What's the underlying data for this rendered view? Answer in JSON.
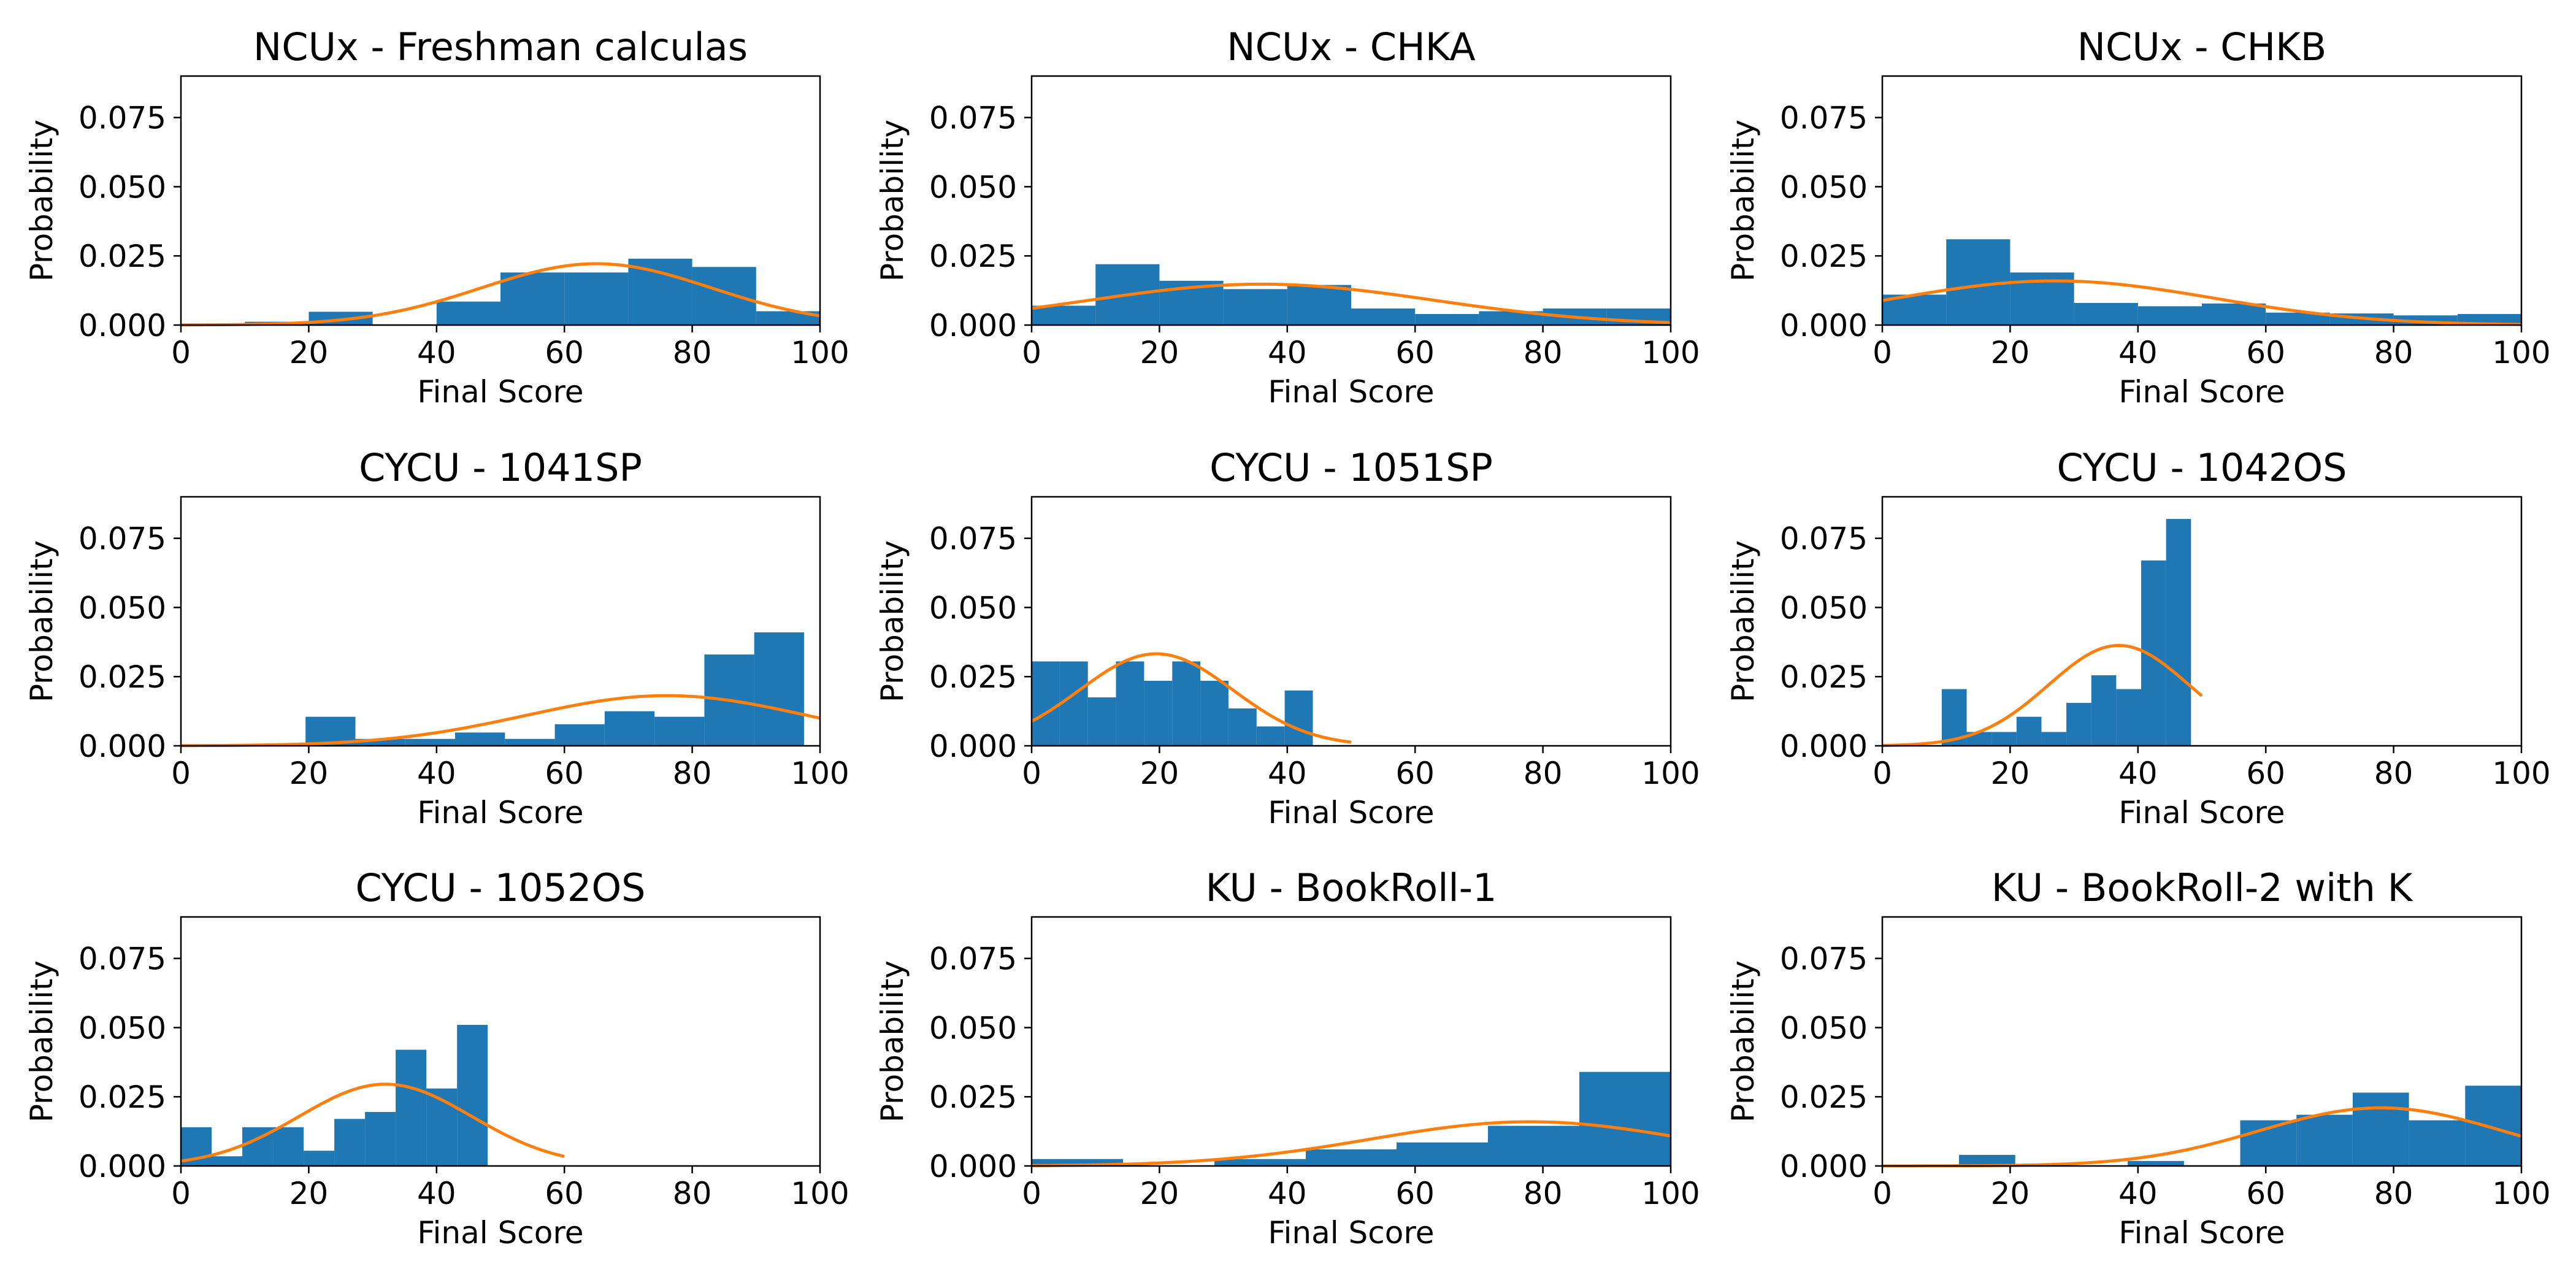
{
  "colors": {
    "histogram": "#1f77b4",
    "fit_curve": "#ff7f0e",
    "axes": "#000000",
    "background": "#ffffff"
  },
  "chart_data": [
    {
      "type": "bar",
      "title": "NCUx - Freshman calculas",
      "xlabel": "Final Score",
      "ylabel": "Probability",
      "xlim": [
        0,
        100
      ],
      "ylim": [
        0,
        0.09
      ],
      "xticks": [
        "0",
        "20",
        "40",
        "60",
        "80",
        "100"
      ],
      "yticks": [
        "0.000",
        "0.025",
        "0.050",
        "0.075"
      ],
      "grid": false,
      "legend": "none",
      "histogram": {
        "bin_edges": [
          0,
          10,
          20,
          30,
          40,
          50,
          60,
          70,
          80,
          90,
          100
        ],
        "values": [
          0.0,
          0.0012,
          0.0048,
          0.0,
          0.0085,
          0.019,
          0.019,
          0.024,
          0.021,
          0.005
        ]
      },
      "fit_curve": {
        "x_range": [
          0,
          100
        ],
        "mean": 65,
        "std": 18
      }
    },
    {
      "type": "bar",
      "title": "NCUx - CHKA",
      "xlabel": "Final Score",
      "ylabel": "Probability",
      "xlim": [
        0,
        100
      ],
      "ylim": [
        0,
        0.09
      ],
      "xticks": [
        "0",
        "20",
        "40",
        "60",
        "80",
        "100"
      ],
      "yticks": [
        "0.000",
        "0.025",
        "0.050",
        "0.075"
      ],
      "grid": false,
      "legend": "none",
      "histogram": {
        "bin_edges": [
          0,
          10,
          20,
          30,
          40,
          50,
          60,
          70,
          80,
          90,
          100
        ],
        "values": [
          0.007,
          0.022,
          0.016,
          0.013,
          0.0145,
          0.006,
          0.004,
          0.005,
          0.006,
          0.006
        ]
      },
      "fit_curve": {
        "x_range": [
          0,
          100
        ],
        "mean": 36,
        "std": 27
      }
    },
    {
      "type": "bar",
      "title": "NCUx - CHKB",
      "xlabel": "Final Score",
      "ylabel": "Probability",
      "xlim": [
        0,
        100
      ],
      "ylim": [
        0,
        0.09
      ],
      "xticks": [
        "0",
        "20",
        "40",
        "60",
        "80",
        "100"
      ],
      "yticks": [
        "0.000",
        "0.025",
        "0.050",
        "0.075"
      ],
      "grid": false,
      "legend": "none",
      "histogram": {
        "bin_edges": [
          0,
          10,
          20,
          30,
          40,
          50,
          60,
          70,
          80,
          90,
          100
        ],
        "values": [
          0.011,
          0.031,
          0.019,
          0.008,
          0.0068,
          0.0078,
          0.0045,
          0.0042,
          0.0035,
          0.004
        ]
      },
      "fit_curve": {
        "x_range": [
          0,
          100
        ],
        "mean": 27,
        "std": 25
      }
    },
    {
      "type": "bar",
      "title": "CYCU - 1041SP",
      "xlabel": "Final Score",
      "ylabel": "Probability",
      "xlim": [
        0,
        100
      ],
      "ylim": [
        0,
        0.09
      ],
      "xticks": [
        "0",
        "20",
        "40",
        "60",
        "80",
        "100"
      ],
      "yticks": [
        "0.000",
        "0.025",
        "0.050",
        "0.075"
      ],
      "grid": false,
      "legend": "none",
      "histogram": {
        "bin_edges": [
          19.5,
          27.3,
          35.1,
          42.9,
          50.7,
          58.5,
          66.3,
          74.1,
          81.9,
          89.7,
          97.5
        ],
        "values": [
          0.0105,
          0.0025,
          0.0025,
          0.0048,
          0.0025,
          0.0078,
          0.0125,
          0.0105,
          0.033,
          0.041
        ]
      },
      "fit_curve": {
        "x_range": [
          0,
          100
        ],
        "mean": 76,
        "std": 22
      }
    },
    {
      "type": "bar",
      "title": "CYCU - 1051SP",
      "xlabel": "Final Score",
      "ylabel": "Probability",
      "xlim": [
        0,
        100
      ],
      "ylim": [
        0,
        0.09
      ],
      "xticks": [
        "0",
        "20",
        "40",
        "60",
        "80",
        "100"
      ],
      "yticks": [
        "0.000",
        "0.025",
        "0.050",
        "0.075"
      ],
      "grid": false,
      "legend": "none",
      "histogram": {
        "bin_edges": [
          0,
          4.4,
          8.8,
          13.2,
          17.6,
          22,
          26.4,
          30.8,
          35.2,
          39.6,
          44
        ],
        "values": [
          0.0305,
          0.0305,
          0.0175,
          0.0305,
          0.0235,
          0.0305,
          0.0235,
          0.0135,
          0.007,
          0.02
        ]
      },
      "fit_curve": {
        "x_range": [
          0,
          50
        ],
        "mean": 19.5,
        "std": 12
      }
    },
    {
      "type": "bar",
      "title": "CYCU - 1042OS",
      "xlabel": "Final Score",
      "ylabel": "Probability",
      "xlim": [
        0,
        100
      ],
      "ylim": [
        0,
        0.09
      ],
      "xticks": [
        "0",
        "20",
        "40",
        "60",
        "80",
        "100"
      ],
      "yticks": [
        "0.000",
        "0.025",
        "0.050",
        "0.075"
      ],
      "grid": false,
      "legend": "none",
      "histogram": {
        "bin_edges": [
          9.3,
          13.2,
          17.1,
          21,
          24.9,
          28.8,
          32.7,
          36.6,
          40.5,
          44.4,
          48.3
        ],
        "values": [
          0.0205,
          0.005,
          0.005,
          0.0105,
          0.005,
          0.0155,
          0.0255,
          0.0205,
          0.067,
          0.082
        ]
      },
      "fit_curve": {
        "x_range": [
          0,
          50
        ],
        "mean": 37,
        "std": 11
      }
    },
    {
      "type": "bar",
      "title": "CYCU - 1052OS",
      "xlabel": "Final Score",
      "ylabel": "Probability",
      "xlim": [
        0,
        100
      ],
      "ylim": [
        0,
        0.09
      ],
      "xticks": [
        "0",
        "20",
        "40",
        "60",
        "80",
        "100"
      ],
      "yticks": [
        "0.000",
        "0.025",
        "0.050",
        "0.075"
      ],
      "grid": false,
      "legend": "none",
      "histogram": {
        "bin_edges": [
          0,
          4.8,
          9.6,
          14.4,
          19.2,
          24,
          28.8,
          33.6,
          38.4,
          43.2,
          48
        ],
        "values": [
          0.014,
          0.0035,
          0.014,
          0.014,
          0.0055,
          0.017,
          0.0195,
          0.042,
          0.028,
          0.051
        ]
      },
      "fit_curve": {
        "x_range": [
          0,
          60
        ],
        "mean": 32,
        "std": 13.5
      }
    },
    {
      "type": "bar",
      "title": "KU - BookRoll-1",
      "xlabel": "Final Score",
      "ylabel": "Probability",
      "xlim": [
        0,
        100
      ],
      "ylim": [
        0,
        0.09
      ],
      "xticks": [
        "0",
        "20",
        "40",
        "60",
        "80",
        "100"
      ],
      "yticks": [
        "0.000",
        "0.025",
        "0.050",
        "0.075"
      ],
      "grid": false,
      "legend": "none",
      "histogram": {
        "bin_edges": [
          0,
          14.3,
          28.6,
          42.9,
          57.1,
          71.4,
          85.7,
          100
        ],
        "values": [
          0.0025,
          0.0,
          0.0025,
          0.006,
          0.0085,
          0.0145,
          0.034
        ]
      },
      "fit_curve": {
        "x_range": [
          0,
          100
        ],
        "mean": 78,
        "std": 25
      }
    },
    {
      "type": "bar",
      "title": "KU - BookRoll-2 with K",
      "xlabel": "Final Score",
      "ylabel": "Probability",
      "xlim": [
        0,
        100
      ],
      "ylim": [
        0,
        0.09
      ],
      "xticks": [
        "0",
        "20",
        "40",
        "60",
        "80",
        "100"
      ],
      "yticks": [
        "0.000",
        "0.025",
        "0.050",
        "0.075"
      ],
      "grid": false,
      "legend": "none",
      "histogram": {
        "bin_edges": [
          12,
          20.8,
          29.6,
          38.4,
          47.2,
          56,
          64.8,
          73.6,
          82.4,
          91.2,
          100
        ],
        "values": [
          0.004,
          0.0,
          0.0,
          0.0018,
          0.0,
          0.0165,
          0.0185,
          0.0265,
          0.0165,
          0.029
        ]
      },
      "fit_curve": {
        "x_range": [
          0,
          100
        ],
        "mean": 78,
        "std": 19
      }
    }
  ]
}
